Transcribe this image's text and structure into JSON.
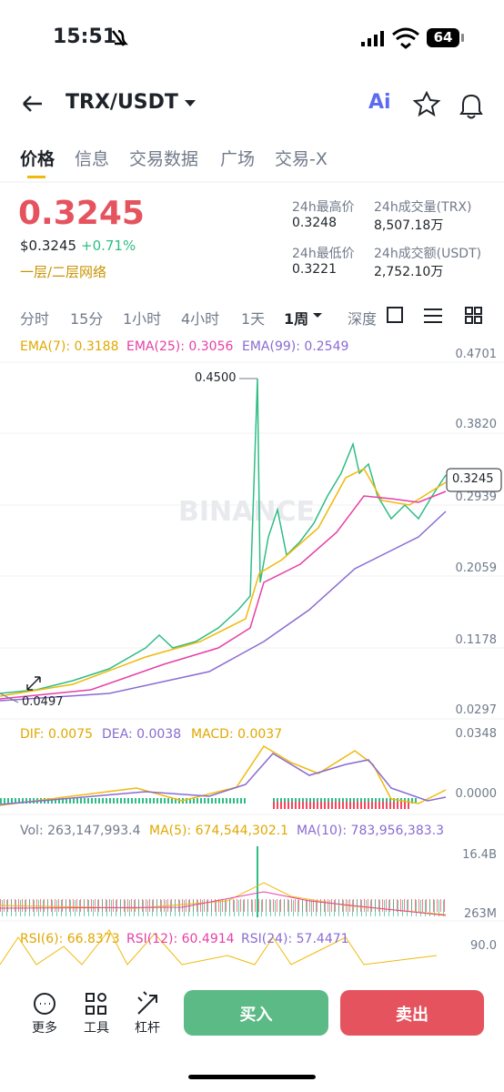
{
  "status": {
    "time": "15:51",
    "battery": "64"
  },
  "header": {
    "pair": "TRX/USDT",
    "ai": "Ai"
  },
  "tabs": [
    "价格",
    "信息",
    "交易数据",
    "广场",
    "交易-X"
  ],
  "price": {
    "last": "0.3245",
    "usd": "$0.3245",
    "change": "+0.71%",
    "tag": "一层/二层网络"
  },
  "stats": [
    {
      "label": "24h最高价",
      "value": "0.3248"
    },
    {
      "label": "24h成交量(TRX)",
      "value": "8,507.18万"
    },
    {
      "label": "24h最低价",
      "value": "0.3221"
    },
    {
      "label": "24h成交额(USDT)",
      "value": "2,752.10万"
    }
  ],
  "intervals": [
    "分时",
    "15分",
    "1小时",
    "4小时",
    "1天",
    "1周",
    "深度"
  ],
  "ema": [
    "EMA(7): 0.3188",
    "EMA(25): 0.3056",
    "EMA(99): 0.2549"
  ],
  "price_axis": [
    "0.4701",
    "0.3820",
    "0.2939",
    "0.2059",
    "0.1178",
    "0.0297"
  ],
  "chart_labels": {
    "high": "0.4500",
    "low": "0.0497",
    "last": "0.3245"
  },
  "watermark": "BINANCE",
  "macd": {
    "legend": [
      "DIF: 0.0075",
      "DEA: 0.0038",
      "MACD: 0.0037"
    ],
    "axis": [
      "0.0348",
      "0.0000"
    ]
  },
  "volume": {
    "legend": [
      "Vol: 263,147,993.4",
      "MA(5): 674,544,302.1",
      "MA(10): 783,956,383.3"
    ],
    "axis": [
      "16.4B",
      "263M"
    ]
  },
  "rsi": {
    "legend": [
      "RSI(6): 66.8373",
      "RSI(12): 60.4914",
      "RSI(24): 57.4471"
    ],
    "axis": [
      "90.0"
    ]
  },
  "bottom": {
    "tools": [
      "更多",
      "工具",
      "杠杆"
    ],
    "buy": "买入",
    "sell": "卖出"
  }
}
